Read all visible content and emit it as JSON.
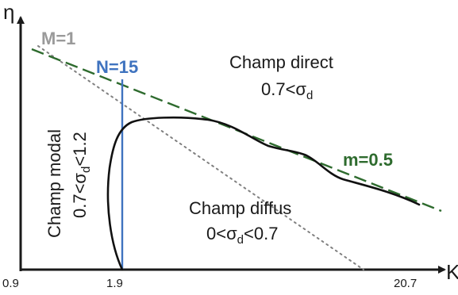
{
  "diagram": {
    "y_axis_label": "η",
    "x_axis_label": "K",
    "x_ticks": [
      "0.9",
      "1.9",
      "20.7"
    ],
    "line_labels": {
      "M": "M=1",
      "N": "N=15",
      "m": "m=0.5"
    },
    "regions": {
      "direct": {
        "line1": "Champ direct",
        "pre": "0.7<σ",
        "sub": "d",
        "post": ""
      },
      "modal": {
        "line1": "Champ modal",
        "pre": "0.7<σ",
        "sub": "d",
        "post": "<1.2"
      },
      "diffus": {
        "line1": "Champ diffus",
        "pre": "0<σ",
        "sub": "d",
        "post": "<0.7"
      }
    },
    "colors": {
      "axis": "#1a1a1a",
      "m_line": "#2e6b2e",
      "n_line": "#3f73bf",
      "m_one_line": "#808080",
      "m_one_label": "#9a9a9a",
      "curve": "#111111"
    }
  }
}
